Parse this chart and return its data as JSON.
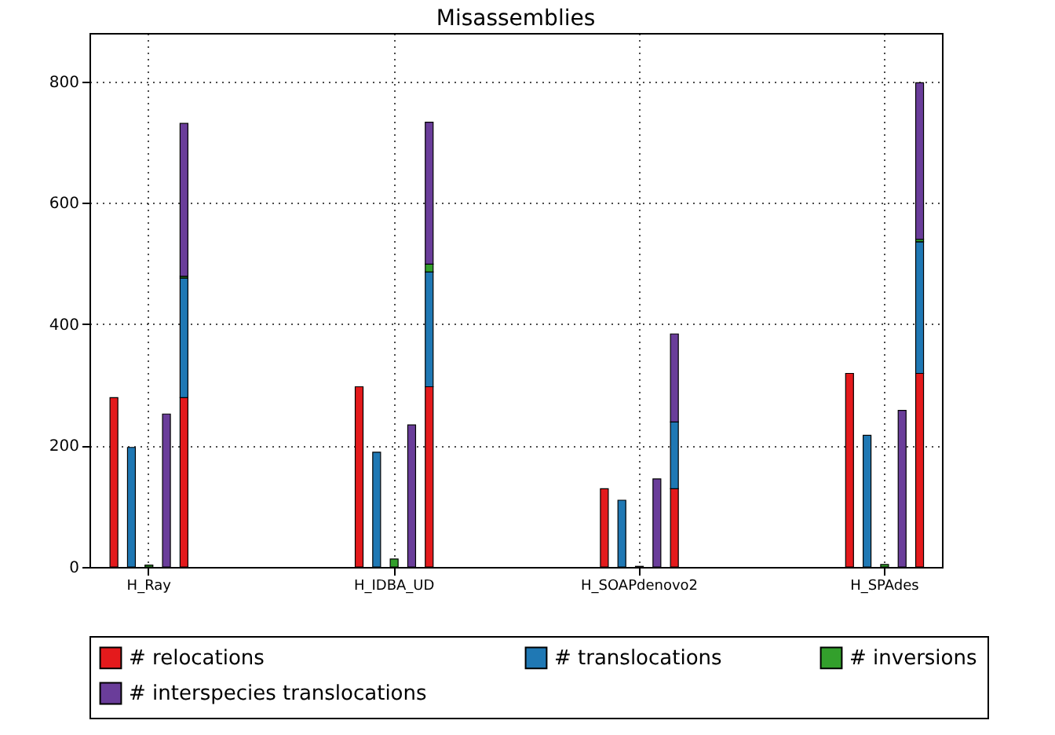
{
  "chart_data": {
    "type": "bar",
    "title": "Misassemblies",
    "stacked": true,
    "grid": true,
    "legend": "bottom",
    "ylim": [
      0,
      880
    ],
    "yticks": [
      0,
      200,
      400,
      600,
      800
    ],
    "categories": [
      null,
      null,
      "H_Ray",
      null,
      null,
      null,
      null,
      null,
      null,
      null,
      null,
      null,
      null,
      null,
      null,
      null,
      "H_IDBA_UD",
      null,
      null,
      null,
      null,
      null,
      null,
      null,
      null,
      null,
      null,
      null,
      null,
      null,
      "H_SOAPdenovo2",
      null,
      null,
      null,
      null,
      null,
      null,
      null,
      null,
      null,
      null,
      null,
      null,
      null,
      "H_SPAdes",
      null,
      null
    ],
    "series": [
      {
        "name": "# relocations",
        "color": "#e41a1c",
        "values": [
          279,
          null,
          null,
          null,
          279,
          null,
          null,
          null,
          null,
          null,
          null,
          null,
          null,
          null,
          297,
          null,
          null,
          null,
          297,
          null,
          null,
          null,
          null,
          null,
          null,
          null,
          null,
          null,
          129,
          null,
          null,
          null,
          129,
          null,
          null,
          null,
          null,
          null,
          null,
          null,
          null,
          null,
          319,
          null,
          null,
          null,
          319
        ]
      },
      {
        "name": "# translocations",
        "color": "#1f78b4",
        "values": [
          null,
          197,
          null,
          null,
          197,
          null,
          null,
          null,
          null,
          null,
          null,
          null,
          null,
          null,
          null,
          189,
          null,
          null,
          189,
          null,
          null,
          null,
          null,
          null,
          null,
          null,
          null,
          null,
          null,
          110,
          null,
          null,
          110,
          null,
          null,
          null,
          null,
          null,
          null,
          null,
          null,
          null,
          null,
          217,
          null,
          null,
          217
        ]
      },
      {
        "name": "# inversions",
        "color": "#33a02c",
        "values": [
          null,
          null,
          3,
          null,
          3,
          null,
          null,
          null,
          null,
          null,
          null,
          null,
          null,
          null,
          null,
          null,
          13,
          null,
          13,
          null,
          null,
          null,
          null,
          null,
          null,
          null,
          null,
          null,
          null,
          null,
          1,
          null,
          null,
          null,
          null,
          null,
          null,
          null,
          null,
          null,
          null,
          null,
          null,
          null,
          4,
          null,
          4
        ]
      },
      {
        "name": "# interspecies translocations",
        "color": "#6a3d9a",
        "values": [
          null,
          null,
          null,
          252,
          252,
          null,
          null,
          null,
          null,
          null,
          null,
          null,
          null,
          null,
          null,
          null,
          null,
          234,
          234,
          null,
          null,
          null,
          null,
          null,
          null,
          null,
          null,
          null,
          null,
          null,
          null,
          145,
          145,
          null,
          null,
          null,
          null,
          null,
          null,
          null,
          null,
          null,
          null,
          null,
          null,
          258,
          258
        ]
      }
    ]
  }
}
